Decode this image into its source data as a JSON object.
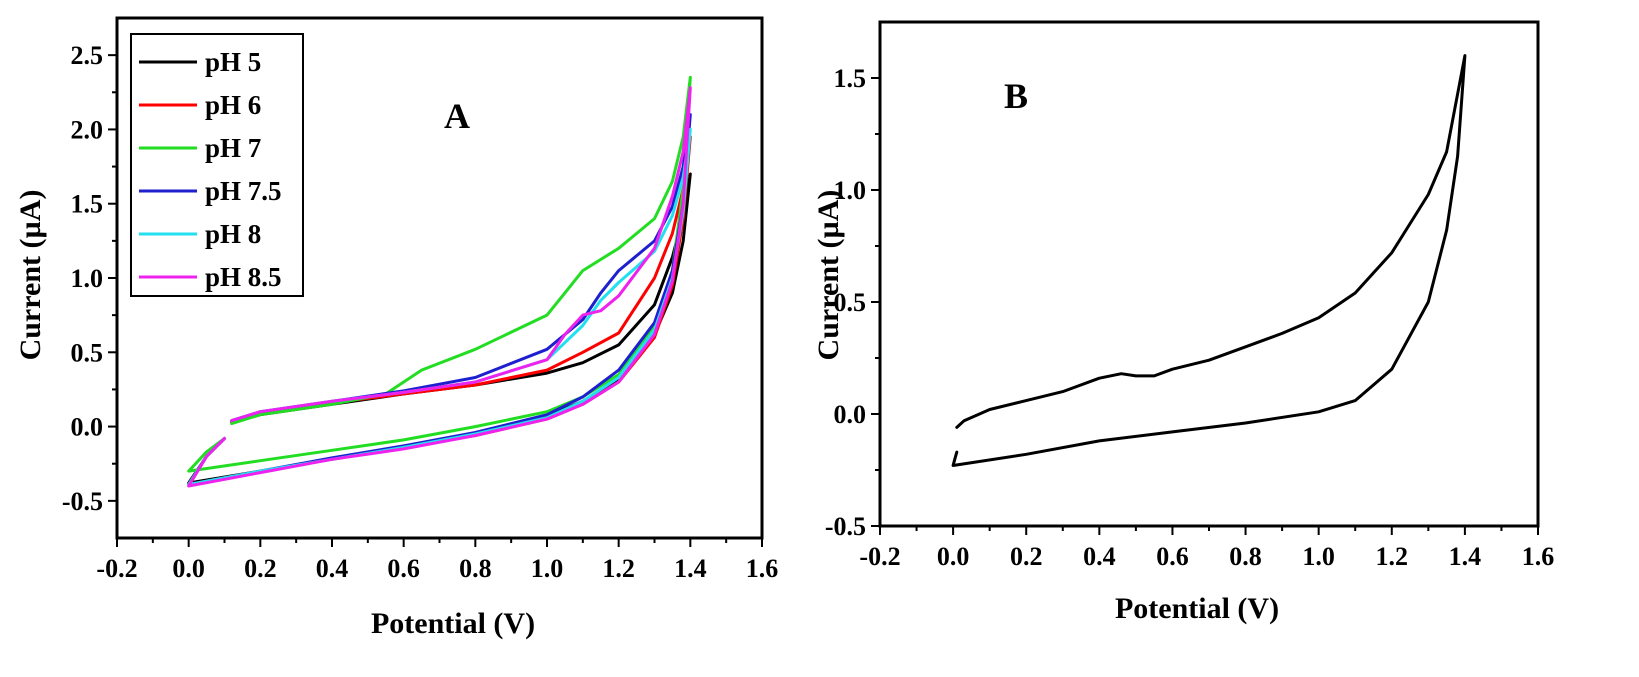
{
  "chart_data": [
    {
      "type": "line",
      "panel_label": "A",
      "xlabel": "Potential (V)",
      "ylabel": "Current (µA)",
      "xlim": [
        -0.2,
        1.6
      ],
      "ylim": [
        -0.75,
        2.75
      ],
      "xticks": [
        -0.2,
        0.0,
        0.2,
        0.4,
        0.6,
        0.8,
        1.0,
        1.2,
        1.4,
        1.6
      ],
      "yticks": [
        -0.5,
        0.0,
        0.5,
        1.0,
        1.5,
        2.0,
        2.5
      ],
      "xtick_labels": [
        "-0.2",
        "0.0",
        "0.2",
        "0.4",
        "0.6",
        "0.8",
        "1.0",
        "1.2",
        "1.4",
        "1.6"
      ],
      "ytick_labels": [
        "-0.5",
        "0.0",
        "0.5",
        "1.0",
        "1.5",
        "2.0",
        "2.5"
      ],
      "legend_position": "top-left",
      "series": [
        {
          "name": "pH 5",
          "color": "#000000",
          "x": [
            0.1,
            0.05,
            0.0,
            0.2,
            0.4,
            0.6,
            0.8,
            1.0,
            1.1,
            1.2,
            1.3,
            1.35,
            1.38,
            1.4,
            1.4,
            1.38,
            1.35,
            1.3,
            1.2,
            1.1,
            1.0,
            0.8,
            0.6,
            0.4,
            0.2,
            0.12
          ],
          "y": [
            -0.08,
            -0.2,
            -0.38,
            -0.3,
            -0.22,
            -0.14,
            -0.05,
            0.07,
            0.17,
            0.32,
            0.62,
            0.9,
            1.25,
            1.7,
            1.7,
            1.42,
            1.14,
            0.82,
            0.55,
            0.43,
            0.36,
            0.28,
            0.22,
            0.15,
            0.08,
            0.03
          ]
        },
        {
          "name": "pH 6",
          "color": "#ff0000",
          "x": [
            0.1,
            0.05,
            0.0,
            0.2,
            0.4,
            0.6,
            0.8,
            1.0,
            1.1,
            1.2,
            1.3,
            1.35,
            1.38,
            1.4,
            1.4,
            1.38,
            1.35,
            1.3,
            1.2,
            1.1,
            1.0,
            0.8,
            0.6,
            0.4,
            0.2,
            0.12
          ],
          "y": [
            -0.08,
            -0.2,
            -0.39,
            -0.3,
            -0.22,
            -0.14,
            -0.06,
            0.05,
            0.15,
            0.3,
            0.6,
            0.95,
            1.4,
            1.95,
            1.95,
            1.6,
            1.3,
            1.0,
            0.63,
            0.5,
            0.38,
            0.28,
            0.22,
            0.16,
            0.09,
            0.03
          ]
        },
        {
          "name": "pH 7",
          "color": "#22dd22",
          "x": [
            0.1,
            0.05,
            0.0,
            0.2,
            0.4,
            0.6,
            0.8,
            1.0,
            1.1,
            1.2,
            1.3,
            1.35,
            1.38,
            1.4,
            1.4,
            1.38,
            1.35,
            1.3,
            1.2,
            1.1,
            1.05,
            1.0,
            0.8,
            0.65,
            0.55,
            0.4,
            0.2,
            0.12
          ],
          "y": [
            -0.08,
            -0.17,
            -0.3,
            -0.23,
            -0.16,
            -0.09,
            0.0,
            0.1,
            0.2,
            0.35,
            0.68,
            1.05,
            1.6,
            2.35,
            2.35,
            1.95,
            1.65,
            1.4,
            1.2,
            1.05,
            0.9,
            0.75,
            0.52,
            0.38,
            0.22,
            0.15,
            0.08,
            0.02
          ]
        },
        {
          "name": "pH 7.5",
          "color": "#1f1fd0",
          "x": [
            0.1,
            0.05,
            0.0,
            0.2,
            0.4,
            0.6,
            0.8,
            1.0,
            1.1,
            1.2,
            1.3,
            1.35,
            1.38,
            1.4,
            1.4,
            1.38,
            1.35,
            1.3,
            1.2,
            1.15,
            1.1,
            1.0,
            0.8,
            0.6,
            0.4,
            0.2,
            0.12
          ],
          "y": [
            -0.08,
            -0.2,
            -0.39,
            -0.3,
            -0.21,
            -0.13,
            -0.04,
            0.08,
            0.2,
            0.38,
            0.7,
            1.05,
            1.5,
            2.1,
            2.1,
            1.75,
            1.48,
            1.25,
            1.05,
            0.9,
            0.72,
            0.52,
            0.33,
            0.24,
            0.17,
            0.1,
            0.04
          ]
        },
        {
          "name": "pH 8",
          "color": "#22e0f0",
          "x": [
            0.1,
            0.05,
            0.0,
            0.2,
            0.4,
            0.6,
            0.8,
            1.0,
            1.1,
            1.2,
            1.3,
            1.35,
            1.38,
            1.4,
            1.4,
            1.38,
            1.35,
            1.3,
            1.2,
            1.15,
            1.1,
            1.0,
            0.8,
            0.6,
            0.4,
            0.2,
            0.12
          ],
          "y": [
            -0.08,
            -0.2,
            -0.39,
            -0.3,
            -0.22,
            -0.14,
            -0.05,
            0.06,
            0.17,
            0.33,
            0.65,
            1.0,
            1.45,
            2.0,
            2.0,
            1.68,
            1.42,
            1.18,
            0.97,
            0.85,
            0.68,
            0.45,
            0.3,
            0.23,
            0.17,
            0.1,
            0.04
          ]
        },
        {
          "name": "pH 8.5",
          "color": "#ee22ee",
          "x": [
            0.1,
            0.05,
            0.0,
            0.2,
            0.4,
            0.6,
            0.8,
            1.0,
            1.1,
            1.2,
            1.3,
            1.35,
            1.38,
            1.4,
            1.4,
            1.38,
            1.35,
            1.3,
            1.2,
            1.15,
            1.1,
            1.05,
            1.0,
            0.8,
            0.6,
            0.4,
            0.2,
            0.12
          ],
          "y": [
            -0.08,
            -0.2,
            -0.4,
            -0.31,
            -0.22,
            -0.15,
            -0.06,
            0.05,
            0.15,
            0.3,
            0.62,
            0.98,
            1.5,
            2.28,
            2.28,
            1.85,
            1.55,
            1.2,
            0.88,
            0.78,
            0.75,
            0.62,
            0.45,
            0.3,
            0.23,
            0.17,
            0.1,
            0.04
          ]
        }
      ]
    },
    {
      "type": "line",
      "panel_label": "B",
      "xlabel": "Potential (V)",
      "ylabel": "Current (µA)",
      "xlim": [
        -0.2,
        1.6
      ],
      "ylim": [
        -0.5,
        1.75
      ],
      "xticks": [
        -0.2,
        0.0,
        0.2,
        0.4,
        0.6,
        0.8,
        1.0,
        1.2,
        1.4,
        1.6
      ],
      "yticks": [
        -0.5,
        0.0,
        0.5,
        1.0,
        1.5
      ],
      "xtick_labels": [
        "-0.2",
        "0.0",
        "0.2",
        "0.4",
        "0.6",
        "0.8",
        "1.0",
        "1.2",
        "1.4",
        "1.6"
      ],
      "ytick_labels": [
        "-0.5",
        "0.0",
        "0.5",
        "1.0",
        "1.5"
      ],
      "series": [
        {
          "name": "",
          "color": "#000000",
          "x": [
            0.01,
            0.005,
            0.0,
            0.2,
            0.4,
            0.6,
            0.8,
            1.0,
            1.1,
            1.2,
            1.3,
            1.35,
            1.38,
            1.4,
            1.4,
            1.35,
            1.3,
            1.2,
            1.1,
            1.0,
            0.9,
            0.8,
            0.7,
            0.6,
            0.55,
            0.5,
            0.46,
            0.4,
            0.3,
            0.2,
            0.1,
            0.03,
            0.01
          ],
          "y": [
            -0.17,
            -0.2,
            -0.23,
            -0.18,
            -0.12,
            -0.08,
            -0.04,
            0.01,
            0.06,
            0.2,
            0.5,
            0.82,
            1.15,
            1.6,
            1.6,
            1.17,
            0.98,
            0.72,
            0.54,
            0.43,
            0.36,
            0.3,
            0.24,
            0.2,
            0.17,
            0.17,
            0.18,
            0.16,
            0.1,
            0.06,
            0.02,
            -0.03,
            -0.06
          ]
        }
      ]
    }
  ]
}
